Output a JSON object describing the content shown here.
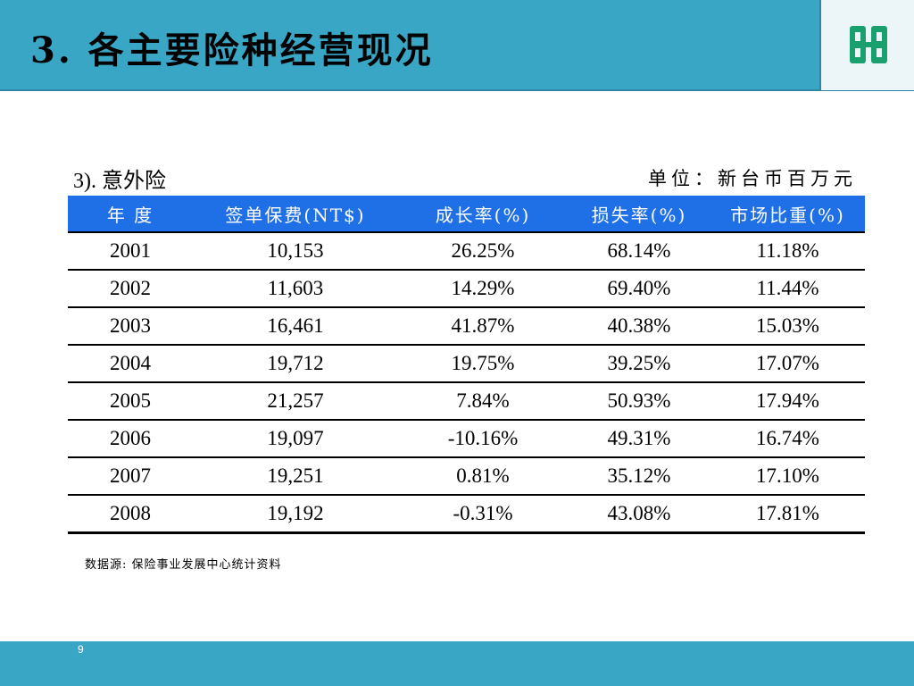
{
  "header": {
    "title": "3. 各主要险种经营现况"
  },
  "logo": {
    "icon": "fubon-logo-icon",
    "color": "#1aa06e"
  },
  "section": {
    "label": "3). 意外险",
    "unit": "单位：新台币百万元"
  },
  "table": {
    "columns": [
      "年  度",
      "签单保费(NT$)",
      "成长率(%)",
      "损失率(%)",
      "市场比重(%)"
    ],
    "rows": [
      [
        "2001",
        "10,153",
        "26.25%",
        "68.14%",
        "11.18%"
      ],
      [
        "2002",
        "11,603",
        "14.29%",
        "69.40%",
        "11.44%"
      ],
      [
        "2003",
        "16,461",
        "41.87%",
        "40.38%",
        "15.03%"
      ],
      [
        "2004",
        "19,712",
        "19.75%",
        "39.25%",
        "17.07%"
      ],
      [
        "2005",
        "21,257",
        "7.84%",
        "50.93%",
        "17.94%"
      ],
      [
        "2006",
        "19,097",
        "-10.16%",
        "49.31%",
        "16.74%"
      ],
      [
        "2007",
        "19,251",
        "0.81%",
        "35.12%",
        "17.10%"
      ],
      [
        "2008",
        "19,192",
        "-0.31%",
        "43.08%",
        "17.81%"
      ]
    ]
  },
  "source": "数据源: 保险事业发展中心统计资料",
  "footer": {
    "page_number": "9"
  },
  "colors": {
    "header_bg": "#3aa6c6",
    "table_header_bg": "#1f6fe6"
  }
}
